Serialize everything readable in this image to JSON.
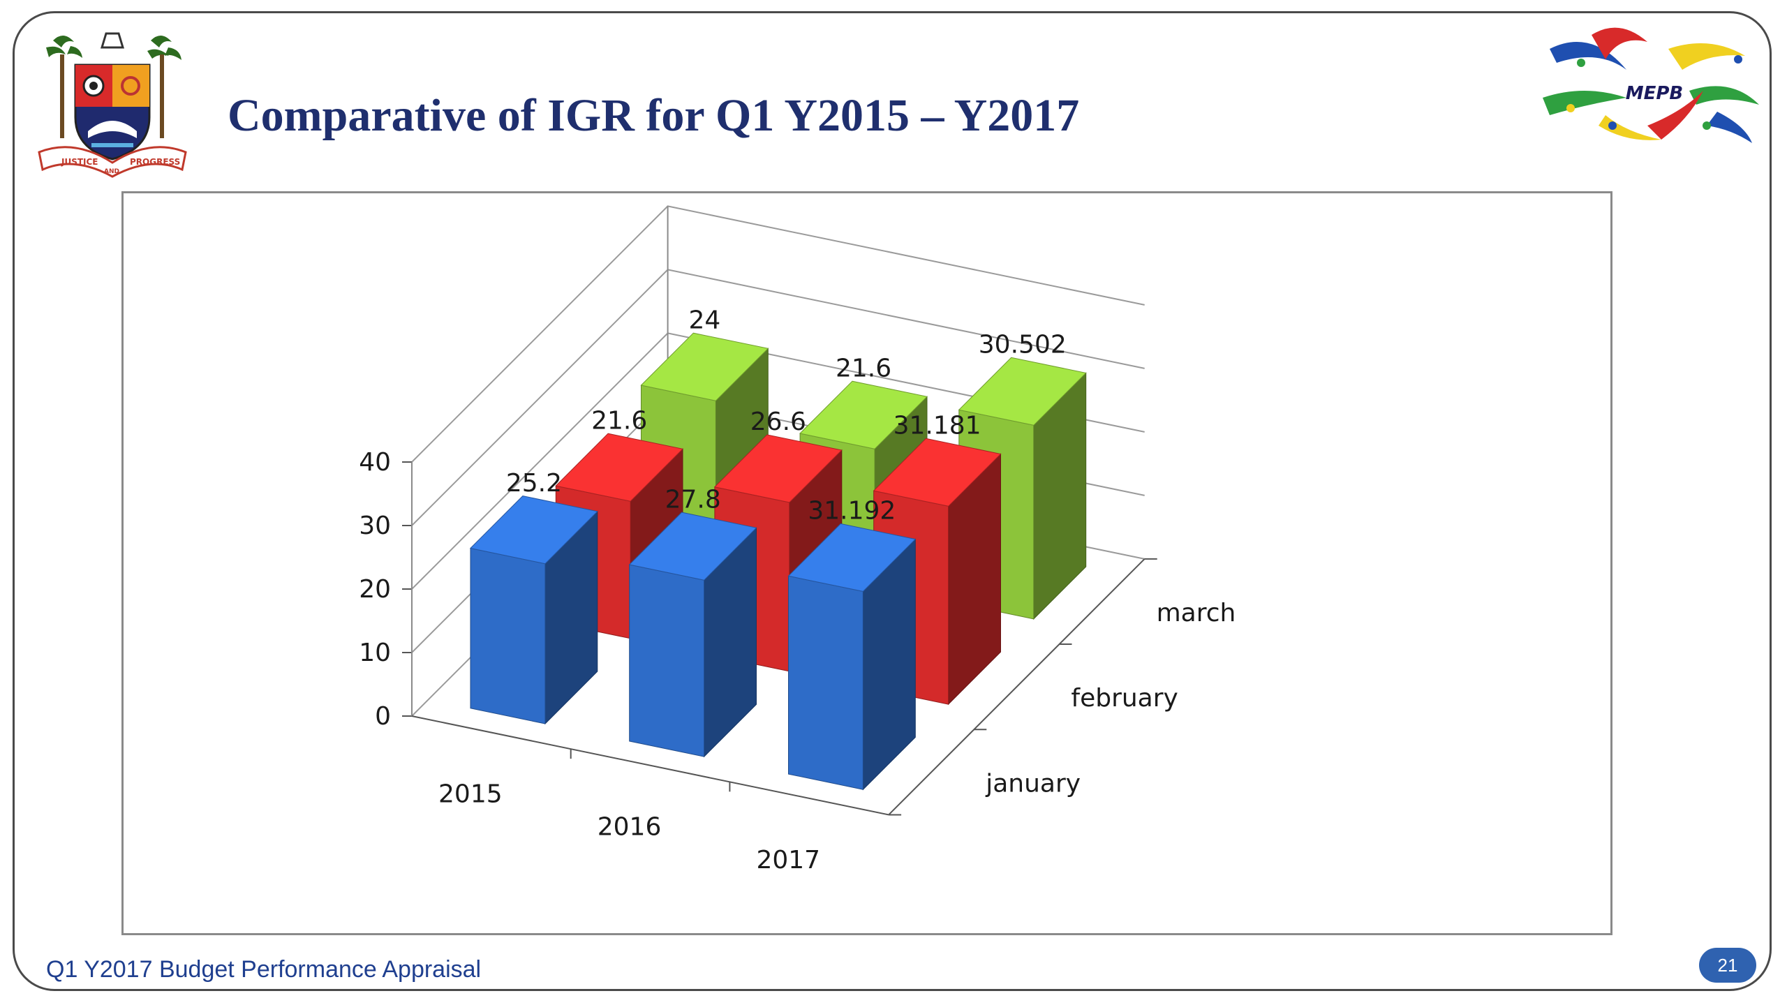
{
  "slide": {
    "title": "Comparative of IGR for Q1 Y2015 – Y2017",
    "footer": "Q1 Y2017 Budget Performance Appraisal",
    "page_number": "21",
    "right_logo_text": "MEPB",
    "left_logo_text": [
      "JUSTICE",
      "AND",
      "PROGRESS"
    ]
  },
  "colors": {
    "title": "#1f2f6e",
    "january": "#2e6cc8",
    "february": "#d42a2a",
    "march": "#8cc43a",
    "badge": "#2f62b0"
  },
  "chart_data": {
    "type": "bar",
    "subtype": "3d-column",
    "categories": [
      "2015",
      "2016",
      "2017"
    ],
    "series": [
      {
        "name": "january",
        "values": [
          25.2,
          27.8,
          31.192
        ]
      },
      {
        "name": "february",
        "values": [
          21.6,
          26.6,
          31.181
        ]
      },
      {
        "name": "march",
        "values": [
          24,
          21.6,
          30.502
        ]
      }
    ],
    "z_axis_labels": [
      "january",
      "february",
      "march"
    ],
    "y_ticks": [
      "0",
      "10",
      "20",
      "30",
      "40"
    ],
    "data_labels": {
      "january": [
        "25.2",
        "27.8",
        "31.192"
      ],
      "february": [
        "21.6",
        "26.6",
        "31.181"
      ],
      "march": [
        "24",
        "21.6",
        "30.502"
      ]
    },
    "ylim": [
      0,
      40
    ],
    "grid": true,
    "legend": "none"
  }
}
